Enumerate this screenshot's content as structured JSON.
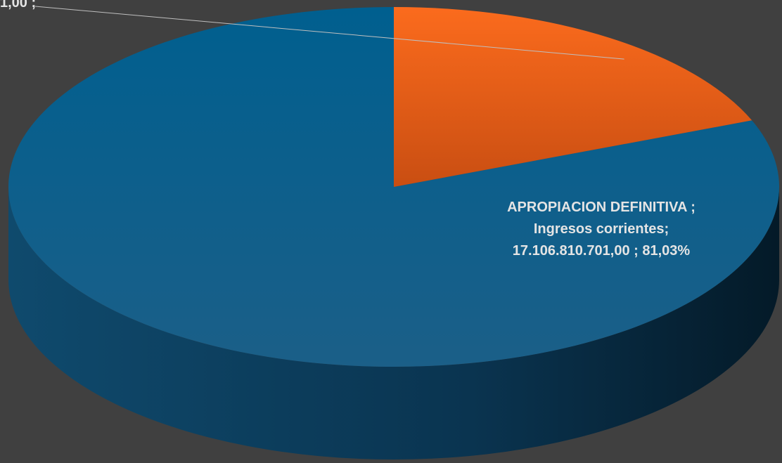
{
  "chart_data": {
    "type": "pie3d",
    "categories": [
      "Ingresos corrientes",
      null
    ],
    "values": [
      81.03,
      18.97
    ],
    "colors": [
      "#1a6593",
      "#e8601c"
    ],
    "labels": [
      "APROPIACION DEFINITIVA ; Ingresos corrientes; 17.106.810.701,00 ; 81,03%",
      "1,00 ;"
    ]
  }
}
